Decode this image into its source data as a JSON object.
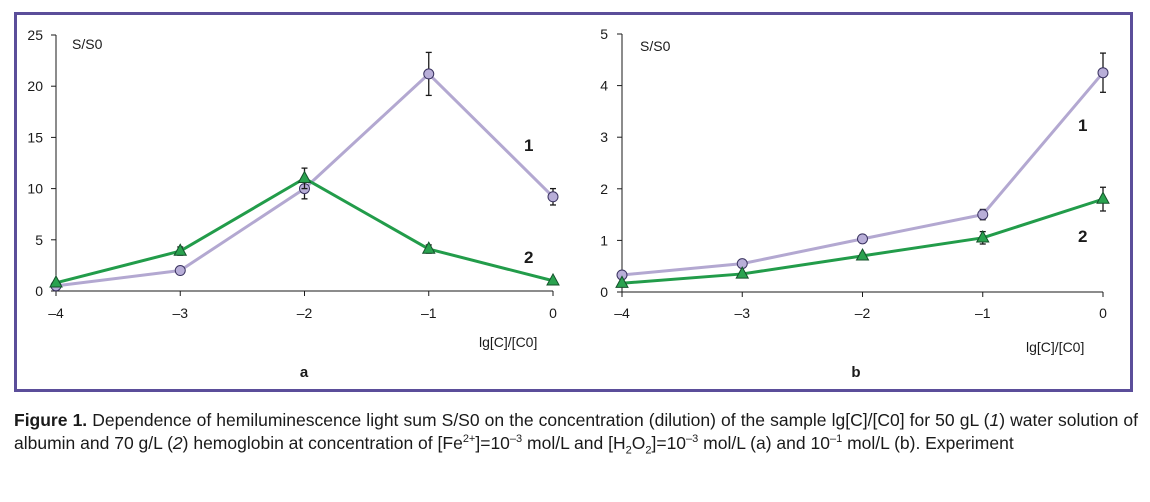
{
  "chart_data": [
    {
      "type": "line",
      "panel_label": "a",
      "xlabel": "lg[C]/[C0]",
      "ylabel": "S/S0",
      "x": [
        -4,
        -3,
        -2,
        -1,
        0
      ],
      "x_ticks": [
        "–4",
        "–3",
        "–2",
        "–1",
        "0"
      ],
      "y_ticks": [
        "0",
        "5",
        "10",
        "15",
        "20",
        "25"
      ],
      "xlim": [
        -4,
        0
      ],
      "ylim": [
        0,
        25
      ],
      "grid": false,
      "series": [
        {
          "name": "1",
          "marker": "circle",
          "color": "#b3a8d1",
          "marker_fill": "#b8aed8",
          "values": [
            0.5,
            2.0,
            10.0,
            21.2,
            9.2
          ],
          "errors": [
            0,
            0,
            1.0,
            2.1,
            0.8
          ]
        },
        {
          "name": "2",
          "marker": "triangle",
          "color": "#229c4a",
          "marker_fill": "#2aa24f",
          "values": [
            0.8,
            3.9,
            11.0,
            4.1,
            1.0
          ],
          "errors": [
            0,
            0.4,
            1.0,
            0.4,
            0
          ]
        }
      ]
    },
    {
      "type": "line",
      "panel_label": "b",
      "xlabel": "lg[C]/[C0]",
      "ylabel": "S/S0",
      "x": [
        -4,
        -3,
        -2,
        -1,
        0
      ],
      "x_ticks": [
        "–4",
        "–3",
        "–2",
        "–1",
        "0"
      ],
      "y_ticks": [
        "0",
        "1",
        "2",
        "3",
        "4",
        "5"
      ],
      "xlim": [
        -4,
        0
      ],
      "ylim": [
        0,
        5
      ],
      "grid": false,
      "series": [
        {
          "name": "1",
          "marker": "circle",
          "color": "#b3a8d1",
          "marker_fill": "#b8aed8",
          "values": [
            0.33,
            0.55,
            1.03,
            1.5,
            4.25
          ],
          "errors": [
            0,
            0,
            0.05,
            0.1,
            0.38
          ]
        },
        {
          "name": "2",
          "marker": "triangle",
          "color": "#229c4a",
          "marker_fill": "#2aa24f",
          "values": [
            0.17,
            0.35,
            0.7,
            1.05,
            1.8
          ],
          "errors": [
            0,
            0,
            0.05,
            0.12,
            0.23
          ]
        }
      ]
    }
  ],
  "caption": {
    "label": "Figure 1.",
    "p1": " Dependence of hemiluminescence light sum S/S0 on the concentration (dilution) of the sample lg[C]/[C0] for 50 gL (",
    "i1": "1",
    "p2": ") water solution of albumin and 70 g/L (",
    "i2": "2",
    "p3": ") hemoglobin at concentration of [Fe",
    "sup1": "2+",
    "p4": "]=10",
    "sup2": "–3",
    "p5": " mol/L and [H",
    "sub1": "2",
    "p6": "O",
    "sub2": "2",
    "p7": "]=10",
    "sup3": "–3",
    "p8": " mol/L (a) and 10",
    "sup4": "–1",
    "p9": " mol/L (b). Experiment"
  },
  "colors": {
    "frame": "#5b4e9a",
    "axis": "#1a1a1a"
  }
}
